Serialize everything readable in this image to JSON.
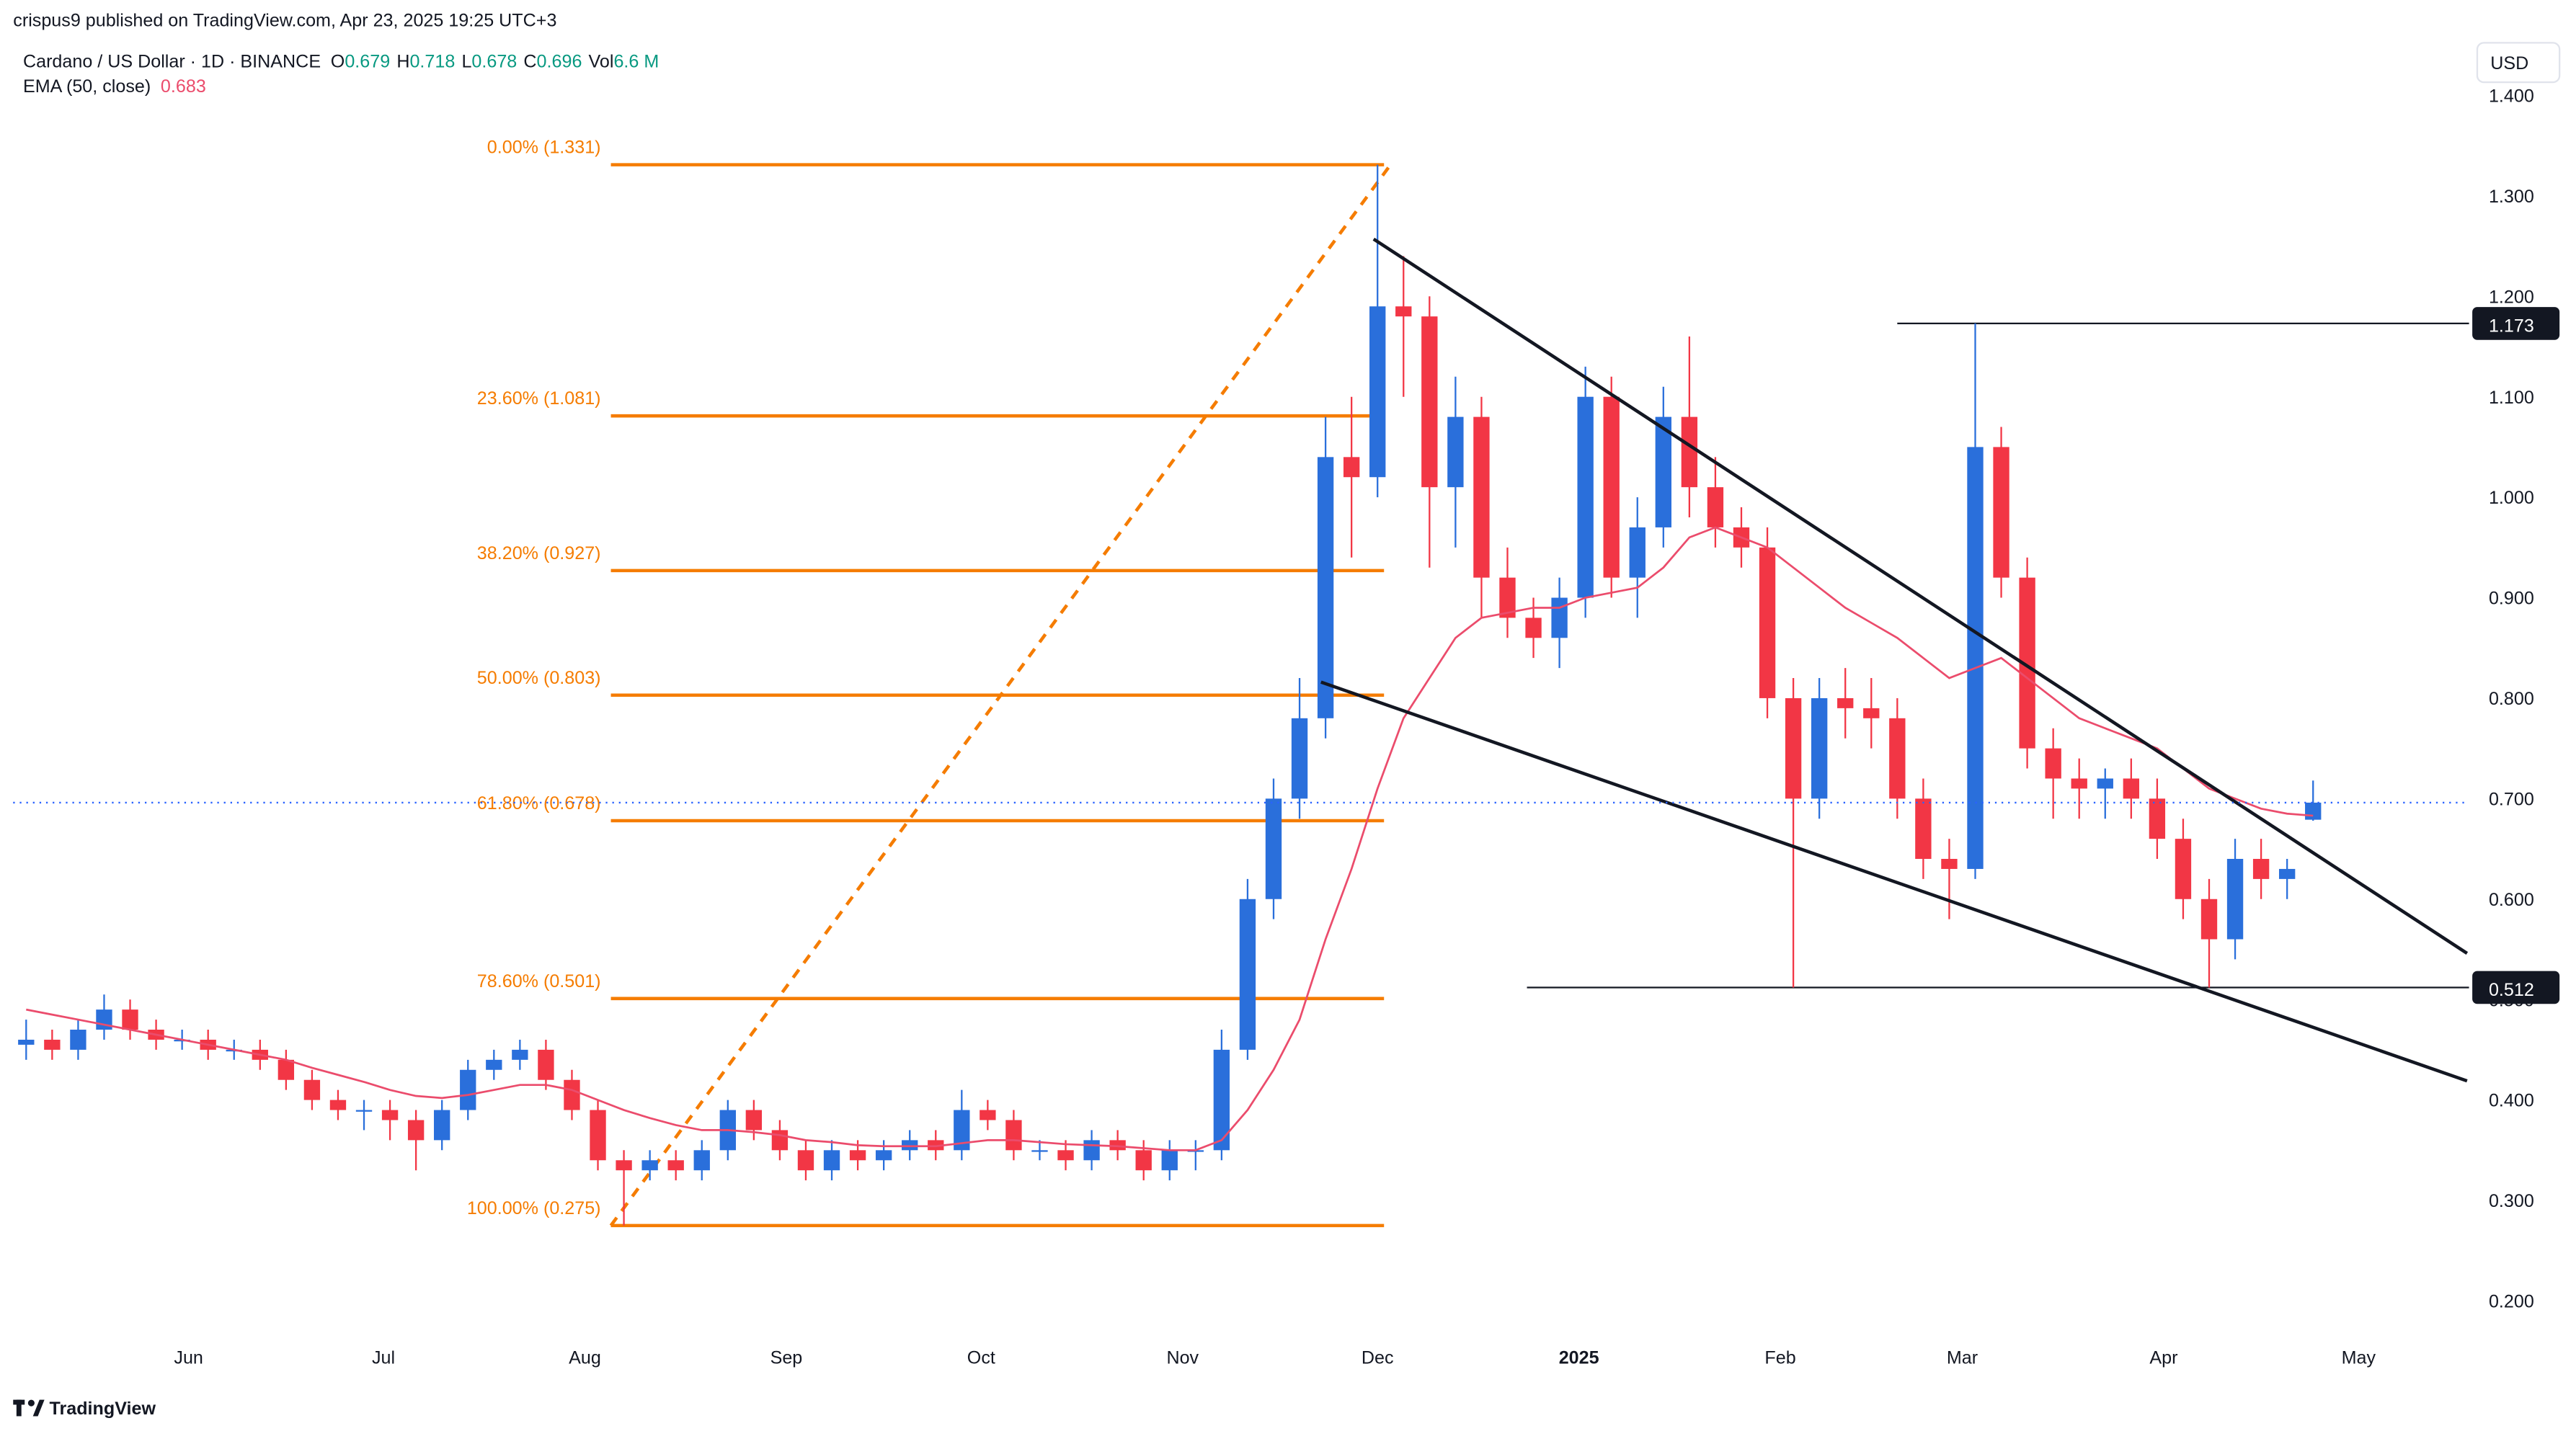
{
  "chart_data": {
    "type": "candlestick",
    "header": "crispus9 published on TradingView.com, Apr 23, 2025 19:25 UTC+3",
    "symbol": "Cardano / US Dollar · 1D · BINANCE",
    "legend_keys": [
      "O",
      "H",
      "L",
      "C",
      "Vol"
    ],
    "volume": "6.6 M",
    "currency": "USD",
    "brand": "TradingView",
    "up_color": "#2a6fdb",
    "down_color": "#f23645",
    "candles": {
      "x": [
        2,
        6,
        10,
        14,
        18,
        22,
        26,
        30,
        34,
        38,
        42,
        46,
        50,
        54,
        58,
        62,
        66,
        70,
        74,
        78,
        82,
        86,
        90,
        94,
        98,
        102,
        106,
        110,
        114,
        118,
        122,
        126,
        130,
        134,
        138,
        142,
        146,
        150,
        154,
        158,
        162,
        166,
        170,
        174,
        178,
        182,
        186,
        190,
        194,
        198,
        202,
        206,
        210,
        214,
        218,
        222,
        226,
        230,
        234,
        238,
        242,
        246,
        250,
        254,
        258,
        262,
        266,
        270,
        274,
        278,
        282,
        286,
        290,
        294,
        298,
        302,
        306,
        310,
        314,
        318,
        322,
        326,
        330,
        334,
        338,
        342,
        346,
        350,
        354
      ],
      "open": [
        0.455,
        0.46,
        0.45,
        0.47,
        0.49,
        0.47,
        0.46,
        0.46,
        0.45,
        0.45,
        0.44,
        0.42,
        0.4,
        0.39,
        0.39,
        0.38,
        0.36,
        0.39,
        0.43,
        0.44,
        0.45,
        0.42,
        0.39,
        0.34,
        0.33,
        0.34,
        0.33,
        0.35,
        0.39,
        0.37,
        0.35,
        0.33,
        0.35,
        0.34,
        0.35,
        0.36,
        0.35,
        0.39,
        0.38,
        0.35,
        0.35,
        0.34,
        0.36,
        0.35,
        0.33,
        0.35,
        0.35,
        0.45,
        0.6,
        0.7,
        0.78,
        1.04,
        1.02,
        1.19,
        1.18,
        1.01,
        1.08,
        0.92,
        0.88,
        0.86,
        0.9,
        1.1,
        0.92,
        0.97,
        1.08,
        1.01,
        0.97,
        0.95,
        0.8,
        0.7,
        0.8,
        0.79,
        0.78,
        0.7,
        0.64,
        0.63,
        1.05,
        0.92,
        0.75,
        0.72,
        0.71,
        0.72,
        0.7,
        0.66,
        0.6,
        0.56,
        0.64,
        0.62,
        0.679
      ],
      "high": [
        0.48,
        0.47,
        0.48,
        0.505,
        0.5,
        0.48,
        0.47,
        0.47,
        0.46,
        0.46,
        0.45,
        0.43,
        0.41,
        0.4,
        0.4,
        0.39,
        0.4,
        0.44,
        0.45,
        0.46,
        0.46,
        0.43,
        0.4,
        0.35,
        0.35,
        0.35,
        0.36,
        0.4,
        0.4,
        0.38,
        0.36,
        0.36,
        0.36,
        0.36,
        0.37,
        0.37,
        0.41,
        0.4,
        0.39,
        0.36,
        0.36,
        0.37,
        0.37,
        0.36,
        0.36,
        0.36,
        0.47,
        0.62,
        0.72,
        0.82,
        1.08,
        1.1,
        1.331,
        1.24,
        1.2,
        1.12,
        1.1,
        0.95,
        0.9,
        0.92,
        1.13,
        1.12,
        1.0,
        1.11,
        1.16,
        1.04,
        0.99,
        0.97,
        0.82,
        0.82,
        0.83,
        0.82,
        0.8,
        0.72,
        0.66,
        1.173,
        1.07,
        0.94,
        0.77,
        0.74,
        0.73,
        0.74,
        0.72,
        0.68,
        0.62,
        0.66,
        0.66,
        0.64,
        0.718
      ],
      "low": [
        0.44,
        0.44,
        0.44,
        0.46,
        0.46,
        0.45,
        0.45,
        0.44,
        0.44,
        0.43,
        0.41,
        0.39,
        0.38,
        0.37,
        0.36,
        0.33,
        0.35,
        0.38,
        0.42,
        0.43,
        0.41,
        0.38,
        0.33,
        0.275,
        0.32,
        0.32,
        0.32,
        0.34,
        0.36,
        0.34,
        0.32,
        0.32,
        0.33,
        0.33,
        0.34,
        0.34,
        0.34,
        0.37,
        0.34,
        0.34,
        0.33,
        0.33,
        0.34,
        0.32,
        0.32,
        0.33,
        0.34,
        0.44,
        0.58,
        0.68,
        0.76,
        0.94,
        1.0,
        1.1,
        0.93,
        0.95,
        0.88,
        0.86,
        0.84,
        0.83,
        0.88,
        0.9,
        0.88,
        0.95,
        0.98,
        0.95,
        0.93,
        0.78,
        0.512,
        0.68,
        0.76,
        0.75,
        0.68,
        0.62,
        0.58,
        0.62,
        0.9,
        0.73,
        0.68,
        0.68,
        0.68,
        0.68,
        0.64,
        0.58,
        0.512,
        0.54,
        0.6,
        0.6,
        0.678
      ],
      "close": [
        0.46,
        0.45,
        0.47,
        0.49,
        0.47,
        0.46,
        0.46,
        0.45,
        0.45,
        0.44,
        0.42,
        0.4,
        0.39,
        0.39,
        0.38,
        0.36,
        0.39,
        0.43,
        0.44,
        0.45,
        0.42,
        0.39,
        0.34,
        0.33,
        0.34,
        0.33,
        0.35,
        0.39,
        0.37,
        0.35,
        0.33,
        0.35,
        0.34,
        0.35,
        0.36,
        0.35,
        0.39,
        0.38,
        0.35,
        0.35,
        0.34,
        0.36,
        0.35,
        0.33,
        0.35,
        0.35,
        0.45,
        0.6,
        0.7,
        0.78,
        1.04,
        1.02,
        1.19,
        1.18,
        1.01,
        1.08,
        0.92,
        0.88,
        0.86,
        0.9,
        1.1,
        0.92,
        0.97,
        1.08,
        1.01,
        0.97,
        0.95,
        0.8,
        0.7,
        0.8,
        0.79,
        0.78,
        0.7,
        0.64,
        0.63,
        1.05,
        0.92,
        0.75,
        0.72,
        0.71,
        0.72,
        0.7,
        0.66,
        0.6,
        0.56,
        0.64,
        0.62,
        0.63,
        0.696
      ]
    },
    "ema": {
      "name": "EMA (50, close)",
      "color": "#eb4c6c",
      "values": [
        0.49,
        0.485,
        0.48,
        0.475,
        0.47,
        0.465,
        0.46,
        0.455,
        0.45,
        0.445,
        0.44,
        0.432,
        0.425,
        0.418,
        0.41,
        0.404,
        0.402,
        0.405,
        0.41,
        0.415,
        0.415,
        0.41,
        0.4,
        0.39,
        0.382,
        0.375,
        0.37,
        0.37,
        0.368,
        0.365,
        0.36,
        0.358,
        0.355,
        0.354,
        0.354,
        0.354,
        0.357,
        0.36,
        0.36,
        0.358,
        0.356,
        0.355,
        0.354,
        0.352,
        0.35,
        0.35,
        0.36,
        0.39,
        0.43,
        0.48,
        0.56,
        0.63,
        0.71,
        0.78,
        0.82,
        0.86,
        0.88,
        0.885,
        0.89,
        0.89,
        0.9,
        0.905,
        0.91,
        0.93,
        0.96,
        0.97,
        0.96,
        0.95,
        0.93,
        0.91,
        0.89,
        0.875,
        0.86,
        0.84,
        0.82,
        0.83,
        0.84,
        0.82,
        0.8,
        0.78,
        0.77,
        0.76,
        0.75,
        0.73,
        0.71,
        0.7,
        0.69,
        0.685,
        0.683
      ]
    },
    "fib": {
      "color": "#f57c00",
      "x": [
        92,
        211
      ],
      "diagonal": {
        "x": [
          92,
          212
        ],
        "y": [
          0.275,
          1.331
        ]
      },
      "levels": [
        {
          "value": 1.331,
          "label": "0.00% (1.331)"
        },
        {
          "value": 1.081,
          "label": "23.60% (1.081)"
        },
        {
          "value": 0.927,
          "label": "38.20% (0.927)"
        },
        {
          "value": 0.803,
          "label": "50.00% (0.803)"
        },
        {
          "value": 0.678,
          "label": "61.80% (0.678)"
        },
        {
          "value": 0.501,
          "label": "78.60% (0.501)"
        },
        {
          "value": 0.275,
          "label": "100.00% (0.275)"
        }
      ]
    },
    "trendlines": [
      {
        "x": [
          209.4,
          377.7
        ],
        "y": [
          1.257,
          0.546
        ]
      },
      {
        "x": [
          201.3,
          377.7
        ],
        "y": [
          0.816,
          0.419
        ]
      }
    ],
    "hlines": [
      {
        "value": 1.173,
        "x_start": 290
      },
      {
        "value": 0.512,
        "x_start": 233
      }
    ],
    "last_price_color": "#2962ff",
    "xlim": [
      0,
      378
    ],
    "xticks": [
      {
        "value": 27,
        "label": "Jun"
      },
      {
        "value": 57,
        "label": "Jul"
      },
      {
        "value": 88,
        "label": "Aug"
      },
      {
        "value": 119,
        "label": "Sep"
      },
      {
        "value": 149,
        "label": "Oct"
      },
      {
        "value": 180,
        "label": "Nov"
      },
      {
        "value": 210,
        "label": "Dec"
      },
      {
        "value": 241,
        "label": "2025"
      },
      {
        "value": 272,
        "label": "Feb"
      },
      {
        "value": 300,
        "label": "Mar"
      },
      {
        "value": 331,
        "label": "Apr"
      },
      {
        "value": 361,
        "label": "May"
      }
    ],
    "ylim": [
      0.172,
      1.495
    ],
    "yticks": [
      {
        "value": 1.4,
        "label": "1.400"
      },
      {
        "value": 1.3,
        "label": "1.300"
      },
      {
        "value": 1.2,
        "label": "1.200"
      },
      {
        "value": 1.1,
        "label": "1.100"
      },
      {
        "value": 1.0,
        "label": "1.000"
      },
      {
        "value": 0.9,
        "label": "0.900"
      },
      {
        "value": 0.8,
        "label": "0.800"
      },
      {
        "value": 0.7,
        "label": "0.700"
      },
      {
        "value": 0.6,
        "label": "0.600"
      },
      {
        "value": 0.5,
        "label": "0.500"
      },
      {
        "value": 0.4,
        "label": "0.400"
      },
      {
        "value": 0.3,
        "label": "0.300"
      },
      {
        "value": 0.2,
        "label": "0.200"
      }
    ]
  }
}
